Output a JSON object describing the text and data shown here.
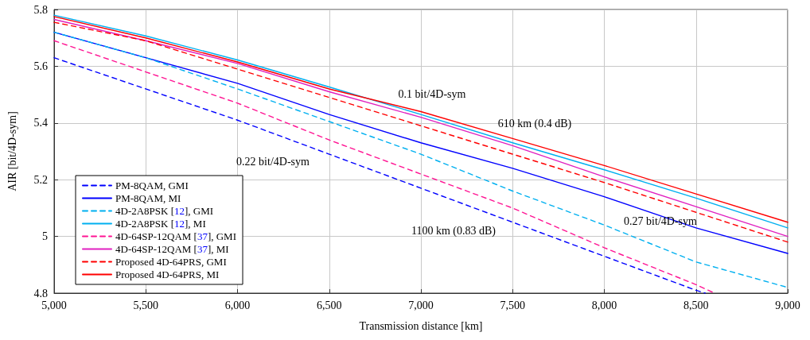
{
  "chart_data": {
    "type": "line",
    "xlabel": "Transmission distance [km]",
    "ylabel": "AIR [bit/4D-sym]",
    "xlim": [
      5000,
      9000
    ],
    "xticks": [
      {
        "value": 5000,
        "label": "5,000"
      },
      {
        "value": 5500,
        "label": "5,500"
      },
      {
        "value": 6000,
        "label": "6,000"
      },
      {
        "value": 6500,
        "label": "6,500"
      },
      {
        "value": 7000,
        "label": "7,000"
      },
      {
        "value": 7500,
        "label": "7,500"
      },
      {
        "value": 8000,
        "label": "8,000"
      },
      {
        "value": 8500,
        "label": "8,500"
      },
      {
        "value": 9000,
        "label": "9,000"
      }
    ],
    "ylim": [
      4.8,
      5.8
    ],
    "yticks": [
      4.8,
      5,
      5.2,
      5.4,
      5.6,
      5.8
    ],
    "grid": true,
    "legend": "bottom left",
    "marker": "none",
    "series": [
      {
        "name": "PM-8QAM, GMI",
        "color": "#0000ff",
        "line_style": "dashed",
        "x": [
          5000,
          5500,
          6000,
          6500,
          7000,
          7500,
          8000,
          8500,
          8550
        ],
        "values": [
          5.63,
          5.52,
          5.41,
          5.29,
          5.17,
          5.05,
          4.93,
          4.81,
          4.8
        ]
      },
      {
        "name": "PM-8QAM, MI",
        "color": "#0000ff",
        "line_style": "solid",
        "x": [
          5000,
          5500,
          6000,
          6500,
          7000,
          7500,
          8000,
          8500,
          9000
        ],
        "values": [
          5.72,
          5.63,
          5.54,
          5.43,
          5.33,
          5.24,
          5.14,
          5.03,
          4.94
        ]
      },
      {
        "name": "4D-2A8PSK [12], GMI",
        "color": "#00b0f0",
        "line_style": "dashed",
        "x": [
          5000,
          5500,
          6000,
          6500,
          7000,
          7500,
          8000,
          8500,
          9000
        ],
        "values": [
          5.72,
          5.63,
          5.52,
          5.405,
          5.29,
          5.16,
          5.04,
          4.91,
          4.82
        ]
      },
      {
        "name": "4D-2A8PSK [12], MI",
        "color": "#00b0f0",
        "line_style": "solid",
        "x": [
          5000,
          5500,
          6000,
          6500,
          7000,
          7500,
          8000,
          8500,
          9000
        ],
        "values": [
          5.78,
          5.707,
          5.622,
          5.527,
          5.43,
          5.33,
          5.235,
          5.135,
          5.03
        ]
      },
      {
        "name": "4D-64SP-12QAM [37], GMI",
        "color": "#ff1493",
        "line_style": "dashed",
        "x": [
          5000,
          5500,
          6000,
          6500,
          7000,
          7500,
          8000,
          8500,
          8600
        ],
        "values": [
          5.69,
          5.58,
          5.47,
          5.34,
          5.22,
          5.1,
          4.96,
          4.83,
          4.8
        ]
      },
      {
        "name": "4D-64SP-12QAM [37], MI",
        "color": "#e020c0",
        "line_style": "solid",
        "x": [
          5000,
          5500,
          6000,
          6500,
          7000,
          7500,
          8000,
          8500,
          9000
        ],
        "values": [
          5.765,
          5.69,
          5.61,
          5.51,
          5.42,
          5.32,
          5.21,
          5.105,
          5.0
        ]
      },
      {
        "name": "Proposed 4D-64PRS, GMI",
        "color": "#ff0000",
        "line_style": "dashed",
        "x": [
          5000,
          5500,
          6000,
          6500,
          7000,
          7500,
          8000,
          8500,
          9000
        ],
        "values": [
          5.755,
          5.69,
          5.59,
          5.49,
          5.39,
          5.29,
          5.19,
          5.085,
          4.98
        ]
      },
      {
        "name": "Proposed 4D-64PRS, MI",
        "color": "#ff0000",
        "line_style": "solid",
        "x": [
          5000,
          5500,
          6000,
          6500,
          7000,
          7500,
          8000,
          8500,
          9000
        ],
        "values": [
          5.775,
          5.7,
          5.615,
          5.52,
          5.44,
          5.345,
          5.25,
          5.15,
          5.05
        ]
      }
    ],
    "annotations": [
      "0.1 bit/4D-sym",
      "610 km (0.4 dB)",
      "0.22 bit/4D-sym",
      "1100 km (0.83 dB)",
      "0.27 bit/4D-sym"
    ]
  }
}
